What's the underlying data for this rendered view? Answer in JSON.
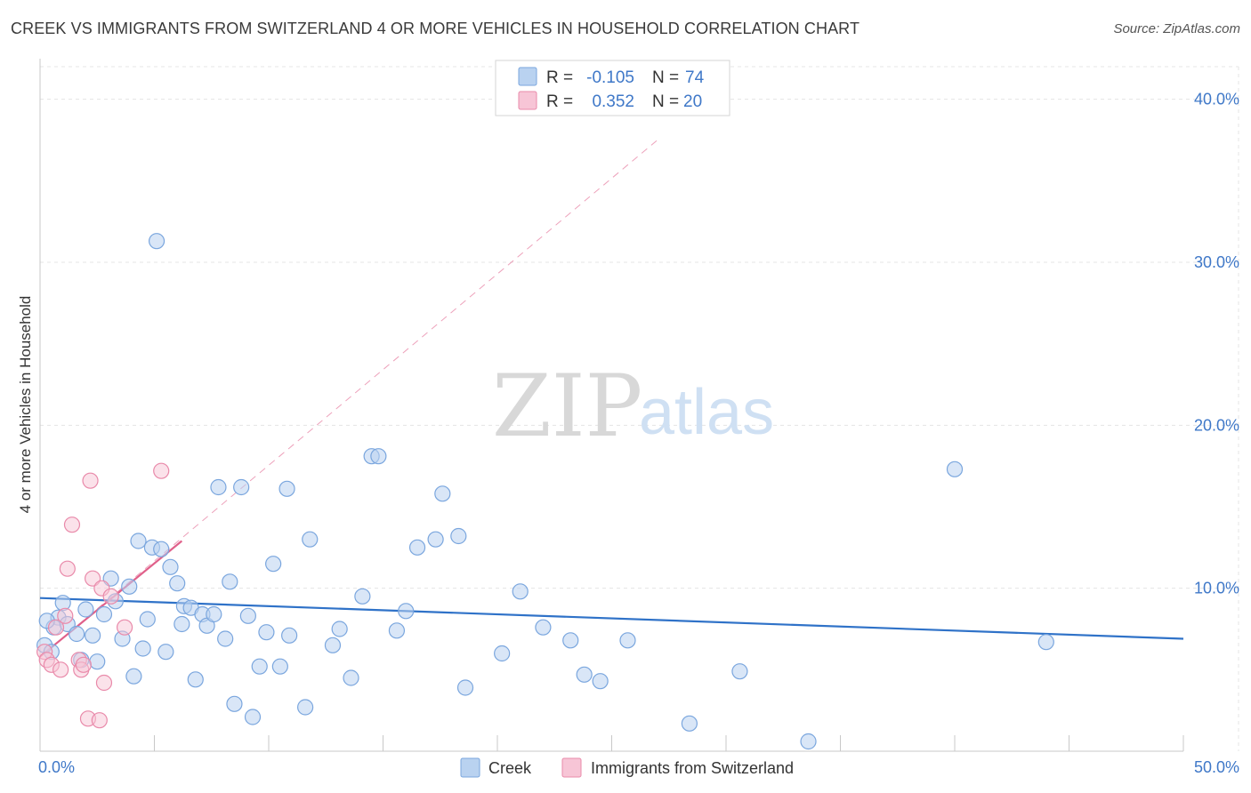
{
  "title": "CREEK VS IMMIGRANTS FROM SWITZERLAND 4 OR MORE VEHICLES IN HOUSEHOLD CORRELATION CHART",
  "source": "Source: ZipAtlas.com",
  "watermark": {
    "zip": "ZIP",
    "atlas": "atlas"
  },
  "colors": {
    "creek_fill": "#b9d2f0",
    "creek_stroke": "#7aa6de",
    "creek_line": "#2f72c8",
    "swiss_fill": "#f7c5d6",
    "swiss_stroke": "#e98aaa",
    "swiss_line": "#e0608a",
    "grid": "#e4e4e4",
    "axis_label": "#3f78c8"
  },
  "legend": {
    "rows": [
      {
        "r_label": "R =",
        "r_value": "-0.105",
        "n_label": "N =",
        "n_value": "74"
      },
      {
        "r_label": "R =",
        "r_value": "0.352",
        "n_label": "N =",
        "n_value": "20"
      }
    ],
    "position": "top-center"
  },
  "chart_data": {
    "type": "scatter",
    "title": "CREEK VS IMMIGRANTS FROM SWITZERLAND 4 OR MORE VEHICLES IN HOUSEHOLD CORRELATION CHART",
    "xlabel": "",
    "ylabel": "4 or more Vehicles in Household",
    "xlim": [
      0,
      50
    ],
    "ylim": [
      0,
      42
    ],
    "x_tick_labels": [
      {
        "value": 0,
        "label": "0.0%"
      },
      {
        "value": 50,
        "label": "50.0%"
      }
    ],
    "y_tick_labels": [
      {
        "value": 10,
        "label": "10.0%"
      },
      {
        "value": 20,
        "label": "20.0%"
      },
      {
        "value": 30,
        "label": "30.0%"
      },
      {
        "value": 40,
        "label": "40.0%"
      }
    ],
    "grid": true,
    "legend_position": "bottom",
    "series": [
      {
        "name": "Creek",
        "trend": {
          "x1": 0,
          "y1": 9.4,
          "x2": 50,
          "y2": 6.9
        },
        "points": [
          [
            5.1,
            31.3
          ],
          [
            1.0,
            9.1
          ],
          [
            0.8,
            8.2
          ],
          [
            0.6,
            7.6
          ],
          [
            0.3,
            8.0
          ],
          [
            1.2,
            7.8
          ],
          [
            1.6,
            7.2
          ],
          [
            2.0,
            8.7
          ],
          [
            2.3,
            7.1
          ],
          [
            2.8,
            8.4
          ],
          [
            2.5,
            5.5
          ],
          [
            3.1,
            10.6
          ],
          [
            3.3,
            9.2
          ],
          [
            3.6,
            6.9
          ],
          [
            3.9,
            10.1
          ],
          [
            4.1,
            4.6
          ],
          [
            4.3,
            12.9
          ],
          [
            4.5,
            6.3
          ],
          [
            4.7,
            8.1
          ],
          [
            4.9,
            12.5
          ],
          [
            5.3,
            12.4
          ],
          [
            5.5,
            6.1
          ],
          [
            5.7,
            11.3
          ],
          [
            6.0,
            10.3
          ],
          [
            6.3,
            8.9
          ],
          [
            6.2,
            7.8
          ],
          [
            6.6,
            8.8
          ],
          [
            6.8,
            4.4
          ],
          [
            7.1,
            8.4
          ],
          [
            7.3,
            7.7
          ],
          [
            7.6,
            8.4
          ],
          [
            7.8,
            16.2
          ],
          [
            8.1,
            6.9
          ],
          [
            8.3,
            10.4
          ],
          [
            8.5,
            2.9
          ],
          [
            8.8,
            16.2
          ],
          [
            9.1,
            8.3
          ],
          [
            9.3,
            2.1
          ],
          [
            9.6,
            5.2
          ],
          [
            9.9,
            7.3
          ],
          [
            10.2,
            11.5
          ],
          [
            10.5,
            5.2
          ],
          [
            10.8,
            16.1
          ],
          [
            10.9,
            7.1
          ],
          [
            11.6,
            2.7
          ],
          [
            11.8,
            13.0
          ],
          [
            12.8,
            6.5
          ],
          [
            13.1,
            7.5
          ],
          [
            13.6,
            4.5
          ],
          [
            14.1,
            9.5
          ],
          [
            14.5,
            18.1
          ],
          [
            14.8,
            18.1
          ],
          [
            15.6,
            7.4
          ],
          [
            16.0,
            8.6
          ],
          [
            16.5,
            12.5
          ],
          [
            17.3,
            13.0
          ],
          [
            17.6,
            15.8
          ],
          [
            18.3,
            13.2
          ],
          [
            18.6,
            3.9
          ],
          [
            20.2,
            6.0
          ],
          [
            21.0,
            9.8
          ],
          [
            22.0,
            7.6
          ],
          [
            23.2,
            6.8
          ],
          [
            23.8,
            4.7
          ],
          [
            24.5,
            4.3
          ],
          [
            25.7,
            6.8
          ],
          [
            28.4,
            1.7
          ],
          [
            30.6,
            4.9
          ],
          [
            33.6,
            0.6
          ],
          [
            40.0,
            17.3
          ],
          [
            44.0,
            6.7
          ],
          [
            0.2,
            6.5
          ],
          [
            0.5,
            6.1
          ],
          [
            1.8,
            5.6
          ]
        ]
      },
      {
        "name": "Immigrants from Switzerland",
        "trend": {
          "x1": 0,
          "y1": 5.8,
          "x2": 6.2,
          "y2": 12.9
        },
        "trend_extension": {
          "x1": 0,
          "y1": 5.8,
          "x2": 27.0,
          "y2": 37.5
        },
        "points": [
          [
            0.2,
            6.1
          ],
          [
            0.3,
            5.6
          ],
          [
            0.5,
            5.3
          ],
          [
            0.7,
            7.6
          ],
          [
            0.9,
            5.0
          ],
          [
            1.1,
            8.3
          ],
          [
            1.2,
            11.2
          ],
          [
            1.4,
            13.9
          ],
          [
            1.7,
            5.6
          ],
          [
            1.8,
            5.0
          ],
          [
            1.9,
            5.3
          ],
          [
            2.1,
            2.0
          ],
          [
            2.2,
            16.6
          ],
          [
            2.3,
            10.6
          ],
          [
            2.6,
            1.9
          ],
          [
            2.7,
            10.0
          ],
          [
            2.8,
            4.2
          ],
          [
            3.1,
            9.5
          ],
          [
            3.7,
            7.6
          ],
          [
            5.3,
            17.2
          ]
        ]
      }
    ]
  }
}
